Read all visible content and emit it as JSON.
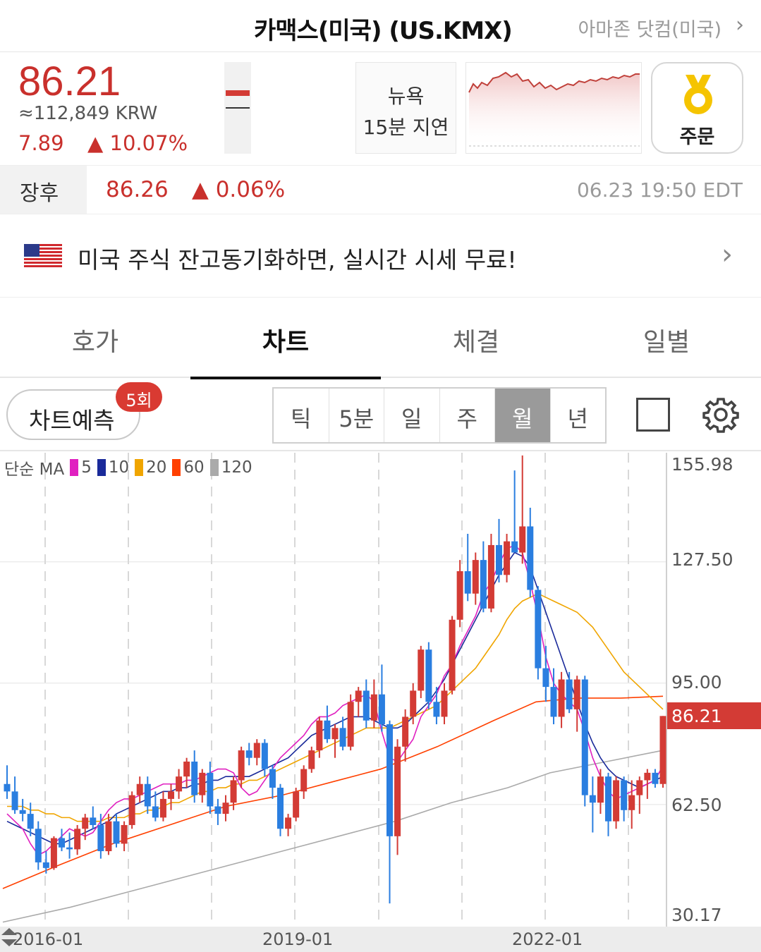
{
  "header": {
    "title": "카맥스(미국) (US.KMX)",
    "related": "아마존 닷컴(미국)"
  },
  "quote": {
    "price": "86.21",
    "krw": "≈112,849 KRW",
    "change": "7.89",
    "change_pct": "▲ 10.07%",
    "delay_line1": "뉴욕",
    "delay_line2": "15분 지연",
    "order_label": "주문"
  },
  "after_hours": {
    "label": "장후",
    "price": "86.26",
    "change_pct": "▲ 0.06%",
    "time": "06.23 19:50 EDT"
  },
  "banner": {
    "message": "미국 주식 잔고동기화하면, 실시간 시세 무료!"
  },
  "tabs": [
    {
      "label": "호가",
      "active": false
    },
    {
      "label": "차트",
      "active": true
    },
    {
      "label": "체결",
      "active": false
    },
    {
      "label": "일별",
      "active": false
    }
  ],
  "toolbar": {
    "predict_label": "차트예측",
    "predict_badge": "5회",
    "periods": [
      {
        "label": "틱",
        "active": false
      },
      {
        "label": "5분",
        "active": false
      },
      {
        "label": "일",
        "active": false
      },
      {
        "label": "주",
        "active": false
      },
      {
        "label": "월",
        "active": true
      },
      {
        "label": "년",
        "active": false
      }
    ]
  },
  "legend": {
    "prefix": "단순 MA",
    "items": [
      {
        "label": "5",
        "color": "#e020c0"
      },
      {
        "label": "10",
        "color": "#1a2a9a"
      },
      {
        "label": "20",
        "color": "#f0a500"
      },
      {
        "label": "60",
        "color": "#ff4000"
      },
      {
        "label": "120",
        "color": "#aaaaaa"
      }
    ]
  },
  "colors": {
    "up": "#d33b35",
    "down": "#2a7ee0",
    "accent": "#c9302c"
  },
  "chart_data": {
    "type": "candlestick",
    "interval": "monthly",
    "y_ticks": [
      155.98,
      127.5,
      95.0,
      62.5,
      30.17
    ],
    "ylim": [
      30.17,
      155.98
    ],
    "x_ticks": [
      "2016-01",
      "2019-01",
      "2022-01"
    ],
    "last_price": "86.21",
    "legend": [
      "5",
      "10",
      "20",
      "60",
      "120"
    ],
    "ohlc": [
      [
        68.0,
        73.0,
        64.0,
        66.0
      ],
      [
        66.0,
        70.0,
        60.0,
        61.0
      ],
      [
        61.0,
        64.0,
        58.0,
        60.0
      ],
      [
        60.0,
        63.0,
        54.0,
        56.0
      ],
      [
        56.0,
        58.0,
        45.0,
        47.0
      ],
      [
        47.0,
        50.0,
        44.0,
        45.5
      ],
      [
        45.5,
        54.0,
        45.0,
        53.5
      ],
      [
        53.5,
        56.0,
        50.0,
        51.0
      ],
      [
        51.0,
        55.0,
        48.0,
        50.5
      ],
      [
        50.5,
        57.0,
        49.0,
        56.0
      ],
      [
        56.0,
        60.0,
        53.0,
        59.0
      ],
      [
        59.0,
        62.0,
        56.0,
        57.0
      ],
      [
        57.0,
        60.0,
        48.0,
        50.0
      ],
      [
        50.0,
        60.0,
        49.0,
        58.0
      ],
      [
        58.0,
        60.0,
        51.0,
        52.0
      ],
      [
        52.0,
        58.0,
        50.0,
        57.0
      ],
      [
        57.0,
        66.0,
        56.0,
        65.0
      ],
      [
        65.0,
        70.0,
        63.0,
        68.0
      ],
      [
        68.0,
        70.0,
        60.0,
        62.0
      ],
      [
        62.0,
        66.0,
        58.0,
        59.0
      ],
      [
        59.0,
        66.0,
        58.0,
        64.0
      ],
      [
        64.0,
        68.0,
        61.0,
        66.0
      ],
      [
        66.0,
        72.0,
        64.0,
        70.0
      ],
      [
        70.0,
        75.0,
        67.0,
        74.0
      ],
      [
        74.0,
        77.0,
        63.0,
        65.0
      ],
      [
        65.0,
        72.0,
        63.0,
        71.0
      ],
      [
        71.0,
        74.0,
        60.0,
        62.0
      ],
      [
        62.0,
        64.0,
        57.0,
        60.0
      ],
      [
        60.0,
        65.0,
        58.0,
        63.0
      ],
      [
        63.0,
        70.0,
        61.0,
        69.0
      ],
      [
        69.0,
        78.0,
        67.0,
        77.0
      ],
      [
        77.0,
        79.0,
        73.0,
        75.0
      ],
      [
        75.0,
        80.0,
        73.0,
        79.0
      ],
      [
        79.0,
        80.0,
        70.0,
        72.0
      ],
      [
        72.0,
        73.0,
        64.0,
        67.0
      ],
      [
        67.0,
        68.0,
        54.0,
        56.0
      ],
      [
        56.0,
        60.0,
        54.0,
        59.0
      ],
      [
        59.0,
        67.0,
        58.0,
        66.0
      ],
      [
        66.0,
        73.0,
        64.0,
        72.0
      ],
      [
        72.0,
        78.0,
        71.0,
        77.0
      ],
      [
        77.0,
        86.0,
        75.0,
        85.0
      ],
      [
        85.0,
        89.0,
        79.0,
        80.0
      ],
      [
        80.0,
        84.0,
        75.0,
        83.0
      ],
      [
        83.0,
        86.0,
        77.0,
        78.0
      ],
      [
        78.0,
        92.0,
        77.0,
        90.0
      ],
      [
        90.0,
        94.0,
        86.0,
        93.0
      ],
      [
        93.0,
        96.0,
        83.0,
        85.0
      ],
      [
        85.0,
        96.0,
        83.0,
        92.0
      ],
      [
        92.0,
        100.0,
        82.0,
        84.0
      ],
      [
        84.0,
        85.0,
        36.0,
        54.0
      ],
      [
        54.0,
        80.0,
        49.0,
        78.0
      ],
      [
        78.0,
        88.0,
        74.0,
        86.0
      ],
      [
        86.0,
        95.0,
        84.0,
        93.0
      ],
      [
        93.0,
        105.0,
        91.0,
        104.0
      ],
      [
        104.0,
        106.0,
        88.0,
        90.0
      ],
      [
        90.0,
        94.0,
        84.0,
        86.0
      ],
      [
        86.0,
        95.0,
        84.0,
        93.0
      ],
      [
        93.0,
        113.0,
        92.0,
        112.0
      ],
      [
        112.0,
        128.0,
        110.0,
        125.0
      ],
      [
        125.0,
        135.0,
        117.0,
        119.0
      ],
      [
        119.0,
        130.0,
        116.0,
        128.0
      ],
      [
        128.0,
        133.0,
        114.0,
        115.0
      ],
      [
        115.0,
        135.0,
        114.0,
        132.0
      ],
      [
        132.0,
        139.0,
        122.0,
        124.0
      ],
      [
        124.0,
        135.0,
        122.0,
        133.0
      ],
      [
        133.0,
        152.0,
        131.0,
        130.0
      ],
      [
        130.0,
        156.0,
        127.0,
        137.0
      ],
      [
        137.0,
        142.0,
        118.0,
        120.0
      ],
      [
        120.0,
        121.0,
        96.0,
        99.0
      ],
      [
        99.0,
        105.0,
        90.0,
        94.0
      ],
      [
        94.0,
        99.0,
        84.0,
        86.0
      ],
      [
        86.0,
        98.0,
        83.0,
        96.0
      ],
      [
        96.0,
        98.0,
        87.0,
        88.0
      ],
      [
        88.0,
        97.0,
        82.0,
        96.0
      ],
      [
        96.0,
        97.0,
        62.0,
        65.0
      ],
      [
        65.0,
        70.0,
        55.0,
        63.0
      ],
      [
        63.0,
        72.0,
        60.0,
        70.0
      ],
      [
        70.0,
        71.0,
        54.0,
        58.0
      ],
      [
        58.0,
        70.0,
        56.0,
        69.0
      ],
      [
        69.0,
        70.0,
        58.0,
        61.0
      ],
      [
        61.0,
        69.0,
        56.0,
        65.0
      ],
      [
        65.0,
        70.0,
        60.0,
        69.0
      ],
      [
        69.0,
        72.0,
        64.0,
        71.0
      ],
      [
        71.0,
        72.0,
        67.0,
        68.0
      ],
      [
        68.0,
        86.21,
        67.0,
        86.21
      ]
    ],
    "ma": {
      "5": [
        60.0,
        58.0,
        56.0,
        52.0,
        49.0,
        50.0,
        52.0,
        54.0,
        56.0,
        55.0,
        54.0,
        55.0,
        58.0,
        61.0,
        63.0,
        64.0,
        64.0,
        65.0,
        66.0,
        67.0,
        68.0,
        68.0,
        68.0,
        69.0,
        69.0,
        70.0,
        71.0,
        72.0,
        72.0,
        71.0,
        67.0,
        65.0,
        66.0,
        69.0,
        72.0,
        75.0,
        77.0,
        79.0,
        81.0,
        84.0,
        86.0,
        86.0,
        87.0,
        89.0,
        90.0,
        91.0,
        92.0,
        90.0,
        82.0,
        75.0,
        74.0,
        77.0,
        80.0,
        86.0,
        89.0,
        92.0,
        97.0,
        100.0,
        105.0,
        109.0,
        113.0,
        119.0,
        122.0,
        127.0,
        131.0,
        132.0,
        130.0,
        122.0,
        113.0,
        102.0,
        95.0,
        92.0,
        90.0,
        88.0,
        82.0,
        75.0,
        70.0,
        66.0,
        64.0,
        65.0,
        66.0,
        67.0,
        68.0,
        69.0,
        73.0
      ],
      "10": [
        58.0,
        57.0,
        56.0,
        55.0,
        54.0,
        53.0,
        52.0,
        52.0,
        53.0,
        54.0,
        55.0,
        56.0,
        57.0,
        58.0,
        60.0,
        61.0,
        62.0,
        63.0,
        64.0,
        65.0,
        66.0,
        66.0,
        67.0,
        67.0,
        68.0,
        68.0,
        69.0,
        69.0,
        70.0,
        70.0,
        70.0,
        70.0,
        71.0,
        72.0,
        73.0,
        74.0,
        75.0,
        77.0,
        79.0,
        81.0,
        82.0,
        83.0,
        84.0,
        85.0,
        86.0,
        86.0,
        86.0,
        85.0,
        84.0,
        83.0,
        83.0,
        84.0,
        86.0,
        88.0,
        90.0,
        93.0,
        96.0,
        100.0,
        104.0,
        108.0,
        112.0,
        116.0,
        120.0,
        124.0,
        127.0,
        130.0,
        129.0,
        126.0,
        120.0,
        114.0,
        108.0,
        102.0,
        96.0,
        90.0,
        84.0,
        79.0,
        75.0,
        72.0,
        70.0,
        69.0,
        68.0,
        67.0,
        68.0,
        69.0,
        70.0
      ],
      "20": [
        62.0,
        62.0,
        62.0,
        61.0,
        61.0,
        60.0,
        60.0,
        59.0,
        59.0,
        58.0,
        58.0,
        58.0,
        58.0,
        59.0,
        59.0,
        59.0,
        60.0,
        60.0,
        61.0,
        61.0,
        62.0,
        63.0,
        63.0,
        64.0,
        65.0,
        66.0,
        66.0,
        67.0,
        67.0,
        68.0,
        68.0,
        69.0,
        69.0,
        70.0,
        71.0,
        72.0,
        73.0,
        74.0,
        75.0,
        76.0,
        77.0,
        78.0,
        79.0,
        80.0,
        81.0,
        82.0,
        83.0,
        83.0,
        83.0,
        83.0,
        84.0,
        85.0,
        86.0,
        87.0,
        88.0,
        89.0,
        91.0,
        93.0,
        95.0,
        97.0,
        99.0,
        102.0,
        105.0,
        108.0,
        112.0,
        115.0,
        117.0,
        118.0,
        119.0,
        118.0,
        117.0,
        116.0,
        115.0,
        114.0,
        112.0,
        110.0,
        107.0,
        104.0,
        101.0,
        98.0,
        96.0,
        94.0,
        92.0,
        90.0,
        88.0
      ]
    }
  }
}
